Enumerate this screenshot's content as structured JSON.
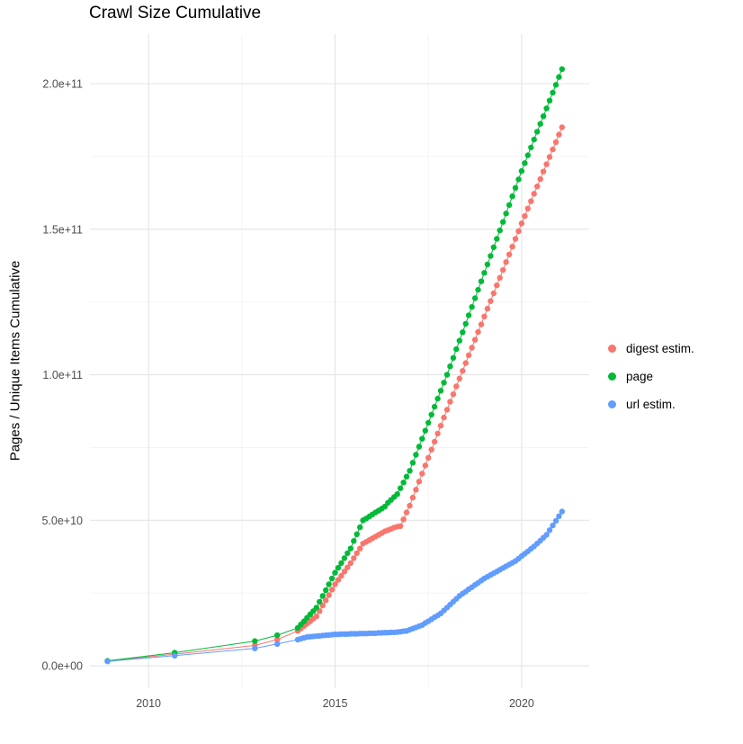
{
  "chart_data": {
    "type": "scatter",
    "title": "Crawl Size Cumulative",
    "xlabel": "",
    "ylabel": "Pages / Unique Items Cumulative",
    "legend_position": "right",
    "grid": true,
    "colors": {
      "background": "#FFFFFF",
      "grid_major": "#E4E4E4",
      "grid_minor": "#F2F2F2",
      "tick_label": "#4D4D4D",
      "text": "#000000"
    },
    "xlim": [
      2008.43,
      2021.81
    ],
    "ylim": [
      -7700000000,
      217000000000
    ],
    "x_ticks": [
      {
        "value": 2010,
        "label": "2010"
      },
      {
        "value": 2015,
        "label": "2015"
      },
      {
        "value": 2020,
        "label": "2020"
      }
    ],
    "y_ticks": [
      {
        "value": 0,
        "label": "0.0e+00"
      },
      {
        "value": 50000000000,
        "label": "5.0e+10"
      },
      {
        "value": 100000000000,
        "label": "1.0e+11"
      },
      {
        "value": 150000000000,
        "label": "1.5e+11"
      },
      {
        "value": 200000000000,
        "label": "2.0e+11"
      }
    ],
    "x_minor": [
      2012.5,
      2017.5
    ],
    "y_minor": [
      25000000000,
      75000000000,
      125000000000,
      175000000000
    ],
    "y_unit": 1000000000,
    "x": [
      2008.9,
      2010.7,
      2012.85,
      2013.45,
      2014.0,
      2014.083,
      2014.167,
      2014.25,
      2014.333,
      2014.417,
      2014.5,
      2014.583,
      2014.667,
      2014.75,
      2014.833,
      2014.917,
      2015.0,
      2015.083,
      2015.167,
      2015.25,
      2015.333,
      2015.417,
      2015.5,
      2015.583,
      2015.667,
      2015.75,
      2015.833,
      2015.917,
      2016.0,
      2016.083,
      2016.167,
      2016.25,
      2016.333,
      2016.417,
      2016.5,
      2016.583,
      2016.667,
      2016.75,
      2016.833,
      2016.917,
      2017.0,
      2017.083,
      2017.167,
      2017.25,
      2017.333,
      2017.417,
      2017.5,
      2017.583,
      2017.667,
      2017.75,
      2017.833,
      2017.917,
      2018.0,
      2018.083,
      2018.167,
      2018.25,
      2018.333,
      2018.417,
      2018.5,
      2018.583,
      2018.667,
      2018.75,
      2018.833,
      2018.917,
      2019.0,
      2019.083,
      2019.167,
      2019.25,
      2019.333,
      2019.417,
      2019.5,
      2019.583,
      2019.667,
      2019.75,
      2019.833,
      2019.917,
      2020.0,
      2020.083,
      2020.167,
      2020.25,
      2020.333,
      2020.417,
      2020.5,
      2020.583,
      2020.667,
      2020.75,
      2020.833,
      2020.917,
      2021.0,
      2021.083
    ],
    "series": [
      {
        "name": "digest estim.",
        "color": "#F8766D",
        "y": [
          1.6,
          4,
          7,
          9,
          12,
          12.8,
          13.7,
          14.5,
          15.3,
          16.2,
          17,
          18.8,
          20.7,
          22.5,
          24.3,
          26.2,
          28,
          29.5,
          30.9,
          32.4,
          33.8,
          35.3,
          37,
          38.7,
          40.3,
          42,
          42.6,
          43.2,
          43.8,
          44.4,
          45,
          45.6,
          46.2,
          46.6,
          47,
          47.5,
          47.8,
          48,
          50.3,
          52.7,
          55,
          57.8,
          60.5,
          63.3,
          66,
          68.8,
          71.5,
          74.3,
          77,
          79.8,
          82.5,
          85.3,
          88,
          90.7,
          93.3,
          96,
          98.7,
          101.3,
          104,
          106.7,
          109.3,
          112,
          114.7,
          117.3,
          120,
          122.7,
          125.3,
          128,
          130.7,
          133.3,
          136,
          138.7,
          141.3,
          144,
          146.7,
          149.3,
          152,
          154.5,
          157.1,
          159.6,
          162.2,
          164.7,
          167.2,
          169.8,
          172.3,
          174.8,
          177.4,
          179.9,
          182.5,
          185
        ]
      },
      {
        "name": "page",
        "color": "#00BA38",
        "y": [
          1.7,
          4.5,
          8.5,
          10.5,
          13,
          14.2,
          15.3,
          16.5,
          17.7,
          18.8,
          20,
          22,
          24,
          26,
          28,
          30,
          32,
          33.7,
          35.3,
          37,
          38.7,
          40.3,
          42.9,
          45.2,
          47.6,
          50,
          50.6,
          51.3,
          52,
          52.7,
          53.3,
          54,
          54.7,
          56,
          57,
          58,
          59,
          61,
          63,
          65,
          67,
          69.8,
          72.5,
          75.3,
          78,
          80.8,
          83.5,
          86.3,
          89,
          91.8,
          94.5,
          97.3,
          100,
          102.9,
          105.8,
          108.8,
          111.7,
          114.6,
          117.5,
          120.4,
          123.3,
          126.3,
          129.2,
          132.1,
          135,
          137.9,
          140.8,
          143.8,
          146.7,
          149.6,
          152.5,
          155.4,
          158.3,
          161.3,
          164.2,
          167.1,
          170,
          172.7,
          175.4,
          178.1,
          180.8,
          183.5,
          186.2,
          188.8,
          191.5,
          194.2,
          196.9,
          199.6,
          202.3,
          205
        ]
      },
      {
        "name": "url estim.",
        "color": "#619CFF",
        "y": [
          1.5,
          3.5,
          6,
          7.5,
          9,
          9.3,
          9.6,
          9.9,
          10,
          10.1,
          10.2,
          10.3,
          10.4,
          10.5,
          10.6,
          10.7,
          10.8,
          10.8,
          10.9,
          10.9,
          10.9,
          11,
          11,
          11,
          11.1,
          11.1,
          11.1,
          11.2,
          11.2,
          11.2,
          11.3,
          11.3,
          11.4,
          11.4,
          11.5,
          11.5,
          11.6,
          11.7,
          11.9,
          12,
          12.4,
          12.8,
          13.2,
          13.6,
          14,
          14.7,
          15.3,
          16,
          16.7,
          17.3,
          18,
          19,
          20,
          21,
          22,
          23,
          24,
          24.8,
          25.5,
          26.3,
          27,
          27.8,
          28.5,
          29.3,
          30,
          30.6,
          31.2,
          31.8,
          32.4,
          33,
          33.6,
          34.2,
          34.8,
          35.4,
          36,
          36.8,
          37.7,
          38.5,
          39.3,
          40.2,
          41,
          42,
          43,
          44,
          45,
          46.6,
          48.2,
          49.8,
          51.4,
          53
        ]
      }
    ]
  }
}
